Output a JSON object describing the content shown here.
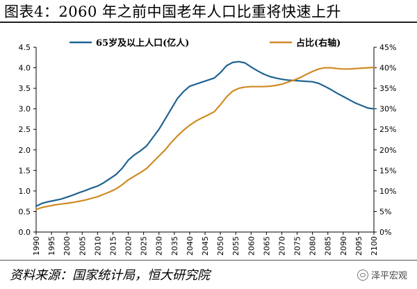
{
  "title": "图表4：2060 年之前中国老年人口比重将快速上升",
  "source": "资料来源：国家统计局，恒大研究院",
  "watermark": "泽平宏观",
  "colors": {
    "series1": "#1f6391",
    "series2": "#d08a23",
    "axis": "#000000"
  },
  "chart_data": {
    "type": "line",
    "x": [
      1990,
      1992,
      1994,
      1996,
      1998,
      2000,
      2002,
      2004,
      2006,
      2008,
      2010,
      2012,
      2014,
      2016,
      2018,
      2020,
      2022,
      2024,
      2026,
      2028,
      2030,
      2032,
      2034,
      2036,
      2038,
      2040,
      2042,
      2044,
      2046,
      2048,
      2050,
      2052,
      2054,
      2056,
      2058,
      2060,
      2062,
      2064,
      2066,
      2068,
      2070,
      2072,
      2074,
      2076,
      2078,
      2080,
      2082,
      2084,
      2086,
      2088,
      2090,
      2092,
      2094,
      2096,
      2098,
      2100
    ],
    "series": [
      {
        "name": "65岁及以上人口(亿人)",
        "axis": "left",
        "values": [
          0.63,
          0.7,
          0.74,
          0.77,
          0.8,
          0.85,
          0.9,
          0.96,
          1.01,
          1.07,
          1.12,
          1.2,
          1.3,
          1.4,
          1.55,
          1.75,
          1.88,
          1.98,
          2.1,
          2.3,
          2.5,
          2.75,
          3.0,
          3.25,
          3.42,
          3.55,
          3.6,
          3.65,
          3.7,
          3.75,
          3.88,
          4.05,
          4.13,
          4.15,
          4.12,
          4.02,
          3.93,
          3.85,
          3.79,
          3.75,
          3.72,
          3.7,
          3.69,
          3.68,
          3.67,
          3.66,
          3.62,
          3.55,
          3.47,
          3.38,
          3.3,
          3.22,
          3.14,
          3.08,
          3.02,
          3.0
        ]
      },
      {
        "name": "占比(右轴)",
        "axis": "right",
        "values": [
          5.5,
          6.0,
          6.3,
          6.6,
          6.8,
          7.0,
          7.2,
          7.5,
          7.8,
          8.2,
          8.6,
          9.2,
          9.8,
          10.5,
          11.5,
          12.7,
          13.6,
          14.5,
          15.5,
          17.0,
          18.5,
          20.0,
          21.8,
          23.4,
          24.8,
          26.0,
          27.0,
          27.8,
          28.5,
          29.3,
          31.0,
          32.9,
          34.3,
          35.0,
          35.3,
          35.4,
          35.4,
          35.4,
          35.5,
          35.7,
          36.0,
          36.5,
          37.0,
          37.6,
          38.4,
          39.1,
          39.7,
          40.0,
          40.0,
          39.8,
          39.7,
          39.7,
          39.8,
          39.9,
          40.0,
          40.1
        ]
      }
    ],
    "left_axis": {
      "ylim": [
        0.0,
        4.5
      ],
      "ticks": [
        "0.0",
        "0.5",
        "1.0",
        "1.5",
        "2.0",
        "2.5",
        "3.0",
        "3.5",
        "4.0",
        "4.5"
      ]
    },
    "right_axis": {
      "ylim": [
        0,
        45
      ],
      "ticks": [
        "0%",
        "5%",
        "10%",
        "15%",
        "20%",
        "25%",
        "30%",
        "35%",
        "40%",
        "45%"
      ]
    },
    "x_ticks": [
      "1990",
      "1995",
      "2000",
      "2005",
      "2010",
      "2015",
      "2020",
      "2025",
      "2030",
      "2035",
      "2040",
      "2045",
      "2050",
      "2055",
      "2060",
      "2065",
      "2070",
      "2075",
      "2080",
      "2085",
      "2090",
      "2095",
      "2100"
    ],
    "legend": [
      {
        "label": "65岁及以上人口(亿人)",
        "series": 0
      },
      {
        "label": "占比(右轴)",
        "series": 1
      }
    ],
    "legend_position": "top",
    "grid": false
  }
}
